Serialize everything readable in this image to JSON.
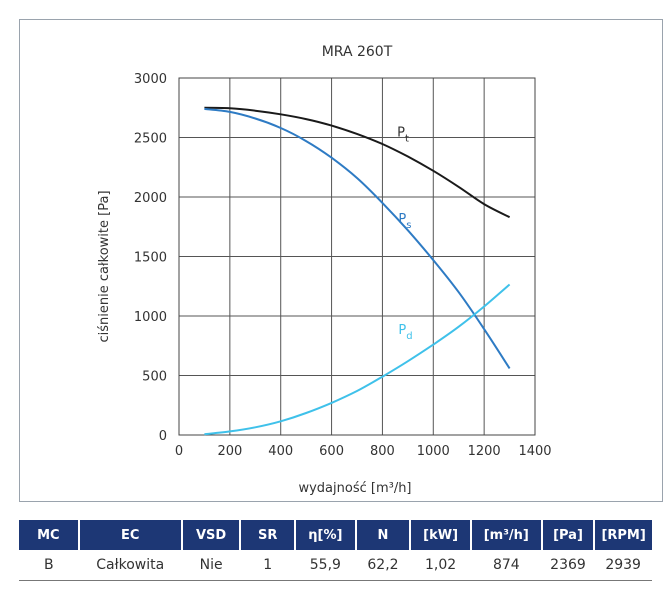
{
  "chart_data": {
    "type": "line",
    "title": "MRA 260T",
    "xlabel": "wydajność [m³/h]",
    "ylabel": "ciśnienie całkowite [Pa]",
    "xlim": [
      0,
      1400
    ],
    "ylim": [
      0,
      3000
    ],
    "xticks": [
      0,
      200,
      400,
      600,
      800,
      1000,
      1200,
      1400
    ],
    "yticks": [
      0,
      500,
      1000,
      1500,
      2000,
      2500,
      3000
    ],
    "grid": true,
    "series": [
      {
        "name": "Pt",
        "main": "P",
        "sub": "t",
        "color": "#1a1a1a",
        "x": [
          100,
          200,
          300,
          400,
          500,
          600,
          700,
          800,
          900,
          1000,
          1100,
          1200,
          1300
        ],
        "y": [
          2750,
          2745,
          2725,
          2695,
          2655,
          2600,
          2530,
          2445,
          2340,
          2220,
          2085,
          1940,
          1830
        ]
      },
      {
        "name": "Ps",
        "main": "P",
        "sub": "s",
        "color": "#2e7bc4",
        "x": [
          100,
          200,
          300,
          400,
          500,
          600,
          700,
          800,
          900,
          1000,
          1100,
          1200,
          1300
        ],
        "y": [
          2740,
          2715,
          2660,
          2580,
          2470,
          2330,
          2160,
          1950,
          1720,
          1470,
          1200,
          890,
          560
        ]
      },
      {
        "name": "Pd",
        "main": "P",
        "sub": "d",
        "color": "#3fc1ea",
        "x": [
          100,
          200,
          300,
          400,
          500,
          600,
          700,
          800,
          900,
          1000,
          1100,
          1200,
          1300
        ],
        "y": [
          7,
          30,
          65,
          115,
          185,
          270,
          370,
          490,
          620,
          760,
          910,
          1080,
          1265
        ]
      }
    ]
  },
  "table": {
    "headers": [
      "MC",
      "EC",
      "VSD",
      "SR",
      "η[%]",
      "N",
      "[kW]",
      "[m³/h]",
      "[Pa]",
      "[RPM]"
    ],
    "row": [
      "B",
      "Całkowita",
      "Nie",
      "1",
      "55,9",
      "62,2",
      "1,02",
      "874",
      "2369",
      "2939"
    ]
  }
}
